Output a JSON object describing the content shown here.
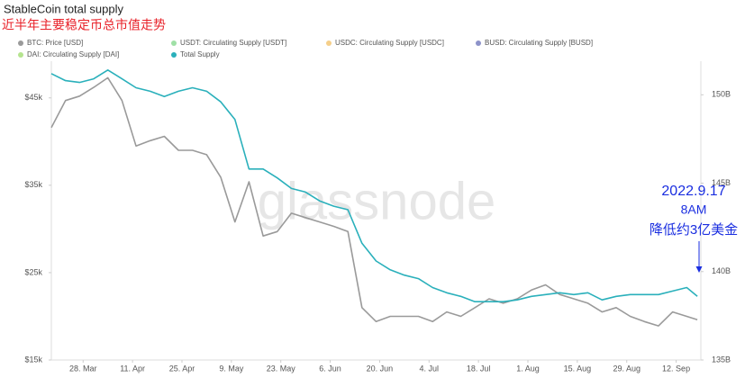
{
  "chart_data": {
    "type": "line",
    "title": "StableCoin total supply",
    "subtitle": "近半年主要稳定币总市值走势",
    "watermark": "glassnode",
    "annotations": [
      "2022.9.17",
      "8AM",
      "降低约3亿美金"
    ],
    "annotation_color": "#1a2ee0",
    "x": [
      78,
      82,
      86,
      90,
      94,
      98,
      102,
      106,
      110,
      114,
      118,
      122,
      126,
      130,
      134,
      138,
      142,
      146,
      150,
      154,
      158,
      162,
      166,
      170,
      174,
      178,
      182,
      186,
      190,
      194,
      198,
      202,
      206,
      210,
      214,
      218,
      222,
      226,
      230,
      234,
      238,
      242,
      246,
      250,
      254,
      258,
      261
    ],
    "xlim": [
      78,
      262
    ],
    "xticks": [
      {
        "value": 87,
        "label": "28. Mar"
      },
      {
        "value": 101,
        "label": "11. Apr"
      },
      {
        "value": 115,
        "label": "25. Apr"
      },
      {
        "value": 129,
        "label": "9. May"
      },
      {
        "value": 143,
        "label": "23. May"
      },
      {
        "value": 157,
        "label": "6. Jun"
      },
      {
        "value": 171,
        "label": "20. Jun"
      },
      {
        "value": 185,
        "label": "4. Jul"
      },
      {
        "value": 199,
        "label": "18. Jul"
      },
      {
        "value": 213,
        "label": "1. Aug"
      },
      {
        "value": 227,
        "label": "15. Aug"
      },
      {
        "value": 241,
        "label": "29. Aug"
      },
      {
        "value": 255,
        "label": "12. Sep"
      }
    ],
    "ylim": [
      15000,
      49200
    ],
    "yticks": [
      {
        "value": 15000,
        "label": "$15k"
      },
      {
        "value": 25000,
        "label": "$25k"
      },
      {
        "value": 35000,
        "label": "$35k"
      },
      {
        "value": 45000,
        "label": "$45k"
      }
    ],
    "y2lim": [
      135,
      151.9
    ],
    "y2ticks": [
      {
        "value": 135,
        "label": "135B"
      },
      {
        "value": 140,
        "label": "140B"
      },
      {
        "value": 145,
        "label": "145B"
      },
      {
        "value": 150,
        "label": "150B"
      }
    ],
    "grid": false,
    "series": [
      {
        "name": "BTC: Price [USD]",
        "color": "#9a9a9a",
        "axis": "y",
        "values": [
          41600,
          44700,
          45200,
          46200,
          47300,
          44700,
          39500,
          40100,
          40600,
          39000,
          39000,
          38500,
          35900,
          30800,
          35400,
          29200,
          29700,
          31800,
          31300,
          30800,
          30300,
          29700,
          21000,
          19400,
          20000,
          20000,
          20000,
          19400,
          20500,
          20000,
          21000,
          22000,
          21500,
          22000,
          23000,
          23600,
          22500,
          22000,
          21500,
          20500,
          21000,
          20000,
          19400,
          18900,
          20500,
          20000,
          19600
        ]
      },
      {
        "name": "USDT: Circulating Supply [USDT]",
        "color": "#9fe0a6",
        "hidden": true
      },
      {
        "name": "USDC: Circulating Supply [USDC]",
        "color": "#f5cf8a",
        "hidden": true
      },
      {
        "name": "BUSD: Circulating Supply [BUSD]",
        "color": "#8d93c9",
        "hidden": true
      },
      {
        "name": "DAI: Circulating Supply [DAI]",
        "color": "#b5e48f",
        "hidden": true
      },
      {
        "name": "Total Supply",
        "color": "#2ab0bb",
        "axis": "y2",
        "values": [
          151.2,
          150.8,
          150.7,
          150.9,
          151.4,
          150.9,
          150.4,
          150.2,
          149.9,
          150.2,
          150.4,
          150.2,
          149.6,
          148.6,
          145.8,
          145.8,
          145.3,
          144.7,
          144.5,
          144.0,
          143.7,
          143.5,
          141.6,
          140.6,
          140.1,
          139.8,
          139.6,
          139.1,
          138.8,
          138.6,
          138.3,
          138.3,
          138.3,
          138.4,
          138.6,
          138.7,
          138.8,
          138.7,
          138.8,
          138.4,
          138.6,
          138.7,
          138.7,
          138.7,
          138.9,
          139.1,
          138.6
        ]
      }
    ]
  }
}
